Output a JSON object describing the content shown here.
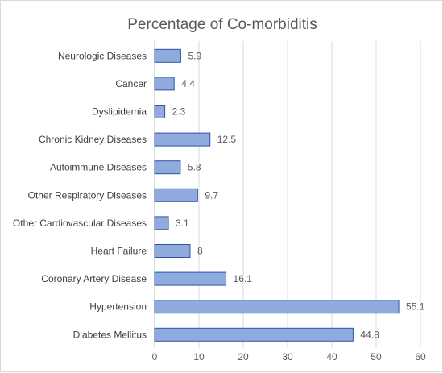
{
  "chart_data": {
    "type": "bar",
    "orientation": "horizontal",
    "title": "Percentage of Co-morbiditis",
    "categories": [
      "Neurologic Diseases",
      "Cancer",
      "Dyslipidemia",
      "Chronic Kidney Diseases",
      "Autoimmune Diseases",
      "Other Respiratory Diseases",
      "Other Cardiovascular Diseases",
      "Heart Failure",
      "Coronary Artery Disease",
      "Hypertension",
      "Diabetes Mellitus"
    ],
    "values": [
      5.9,
      4.4,
      2.3,
      12.5,
      5.8,
      9.7,
      3.1,
      8,
      16.1,
      55.1,
      44.8
    ],
    "xlim": [
      0,
      60
    ],
    "x_ticks": [
      0,
      10,
      20,
      30,
      40,
      50,
      60
    ],
    "grid": "vertical",
    "legend": "none",
    "colors": {
      "bar_fill": "#8faadc",
      "bar_stroke": "#2f55a4"
    }
  }
}
